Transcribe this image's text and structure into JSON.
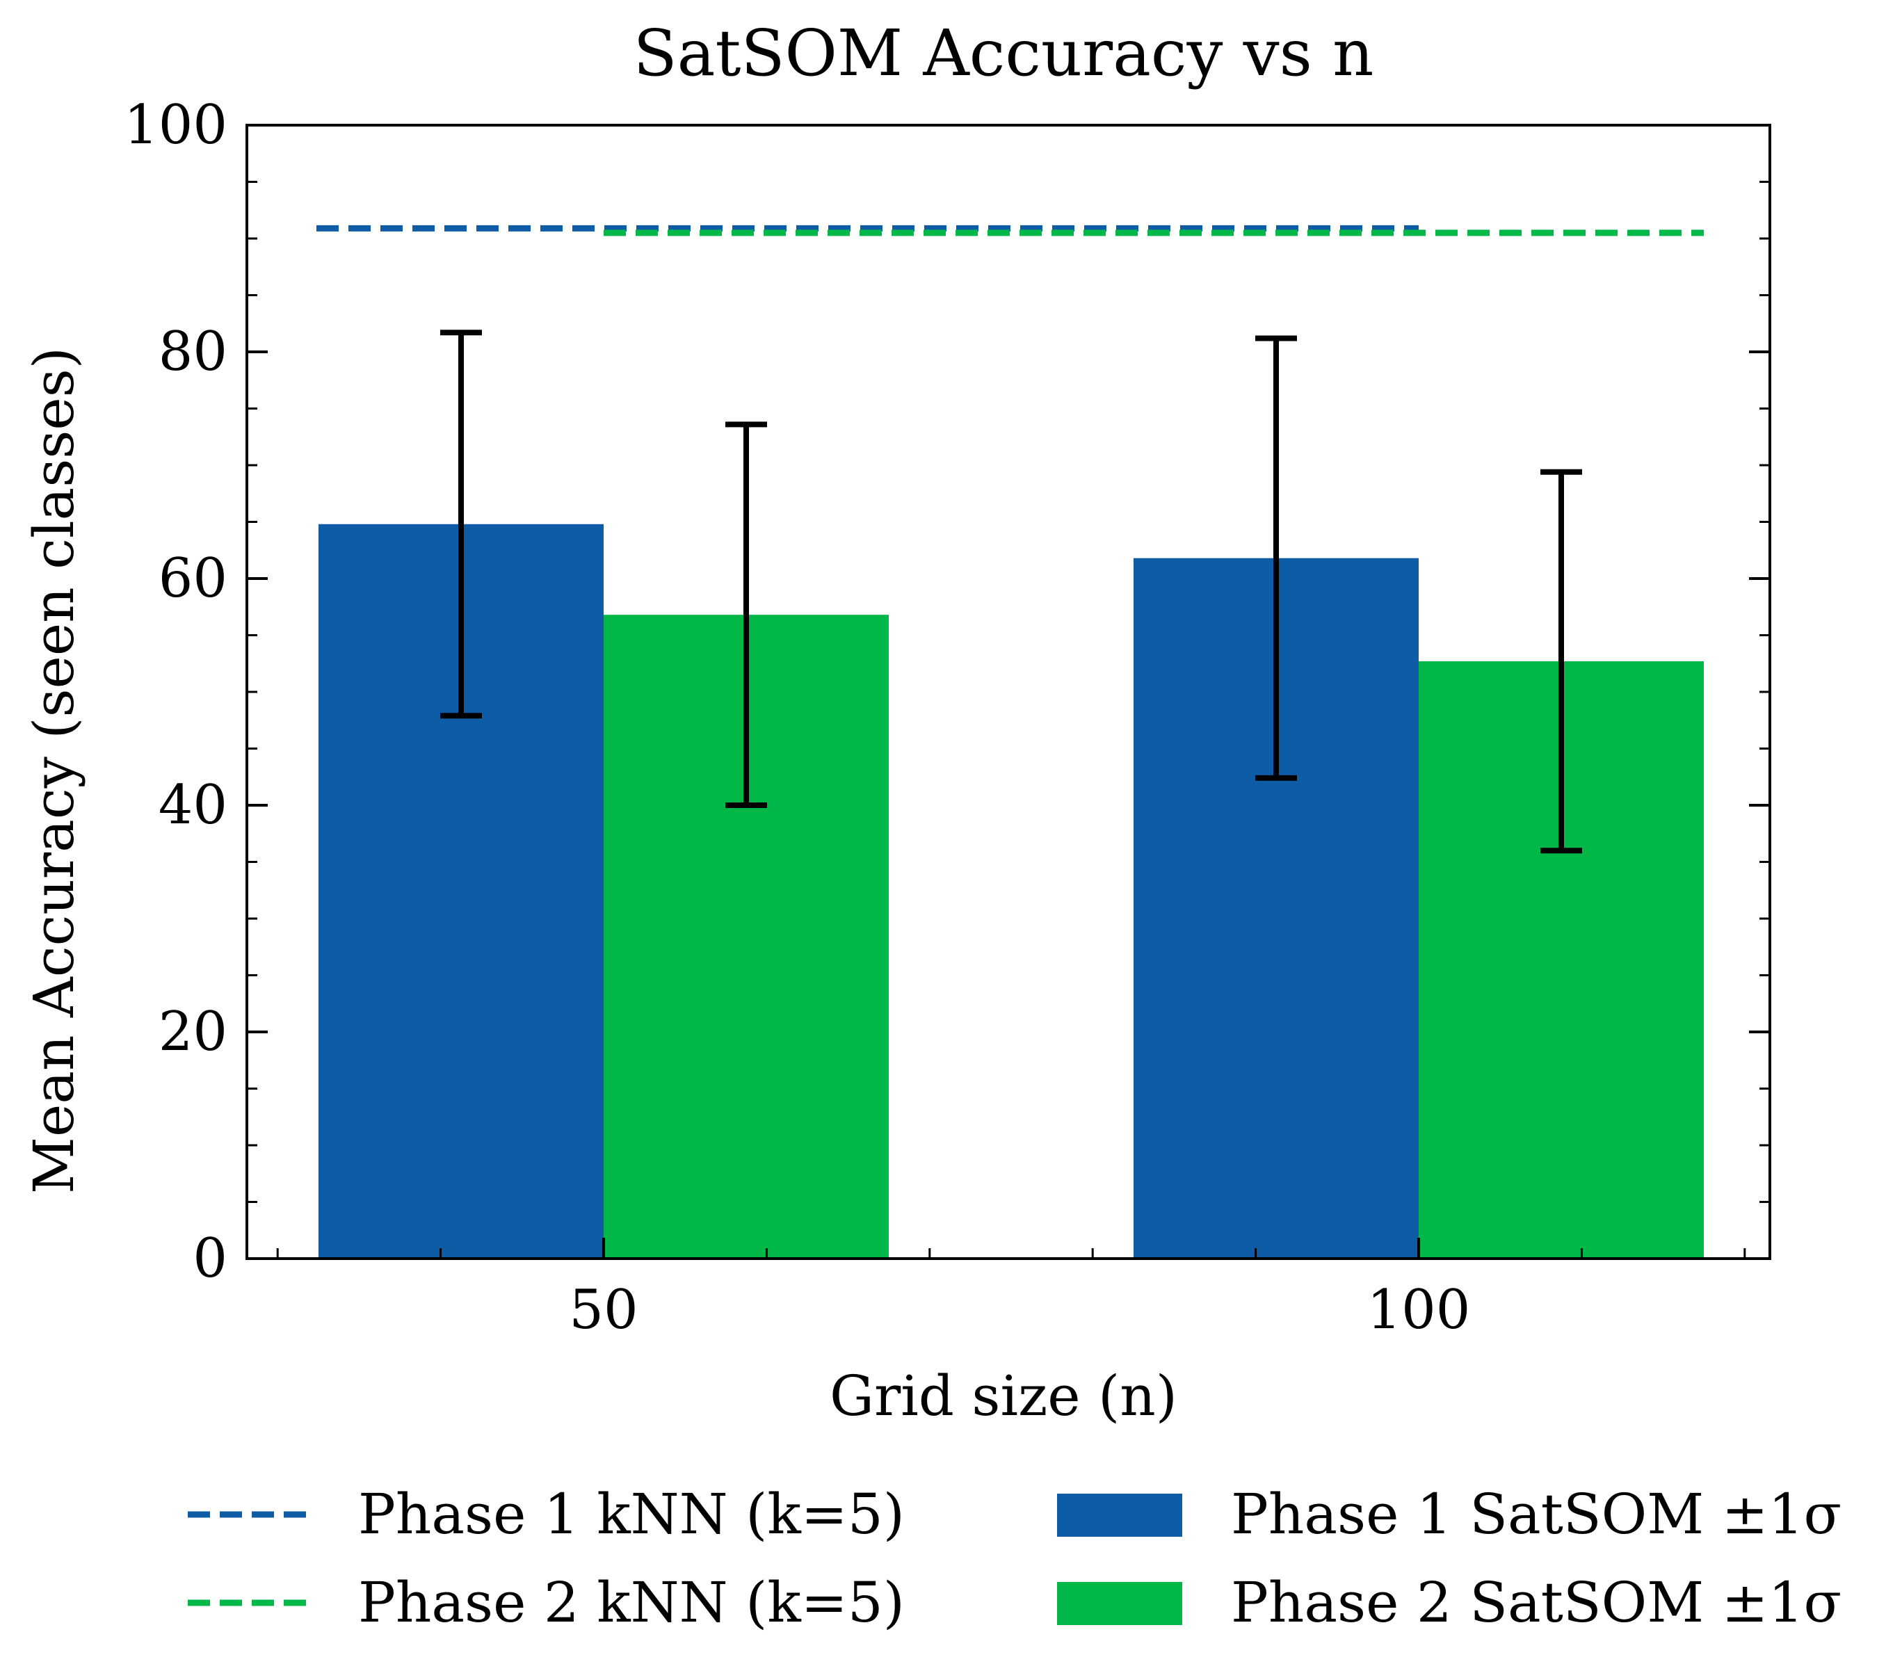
{
  "chart_data": {
    "type": "bar",
    "title": "SatSOM Accuracy vs n",
    "xlabel": "Grid size (n)",
    "ylabel": "Mean Accuracy (seen classes)",
    "ylim": [
      0,
      100
    ],
    "yticks": [
      "0",
      "20",
      "40",
      "60",
      "80",
      "100"
    ],
    "categories": [
      "50",
      "100"
    ],
    "series": [
      {
        "name": "Phase 1 SatSOM ±1σ",
        "color": "#0e5ca6",
        "values": [
          64.8,
          61.8
        ],
        "error": [
          16.9,
          19.4
        ]
      },
      {
        "name": "Phase 2 SatSOM ±1σ",
        "color": "#00b747",
        "values": [
          56.8,
          52.7
        ],
        "error": [
          16.8,
          16.7
        ]
      }
    ],
    "reference_lines": [
      {
        "name": "Phase 1 kNN (k=5)",
        "color": "#0e5ca6",
        "value": 90.9,
        "style": "dashed",
        "x_span": [
          "50-left",
          "100-center"
        ]
      },
      {
        "name": "Phase 2 kNN (k=5)",
        "color": "#00b747",
        "value": 90.5,
        "style": "dashed",
        "x_span": [
          "50-center",
          "100-right"
        ]
      }
    ],
    "legend": {
      "placement": "bottom",
      "items": [
        {
          "label": "Phase 1 kNN (k=5)",
          "kind": "line",
          "color": "#0e5ca6"
        },
        {
          "label": "Phase 2 kNN (k=5)",
          "kind": "line",
          "color": "#00b747"
        },
        {
          "label": "Phase 1 SatSOM ±1σ",
          "kind": "bar",
          "color": "#0e5ca6"
        },
        {
          "label": "Phase 2 SatSOM ±1σ",
          "kind": "bar",
          "color": "#00b747"
        }
      ]
    }
  }
}
